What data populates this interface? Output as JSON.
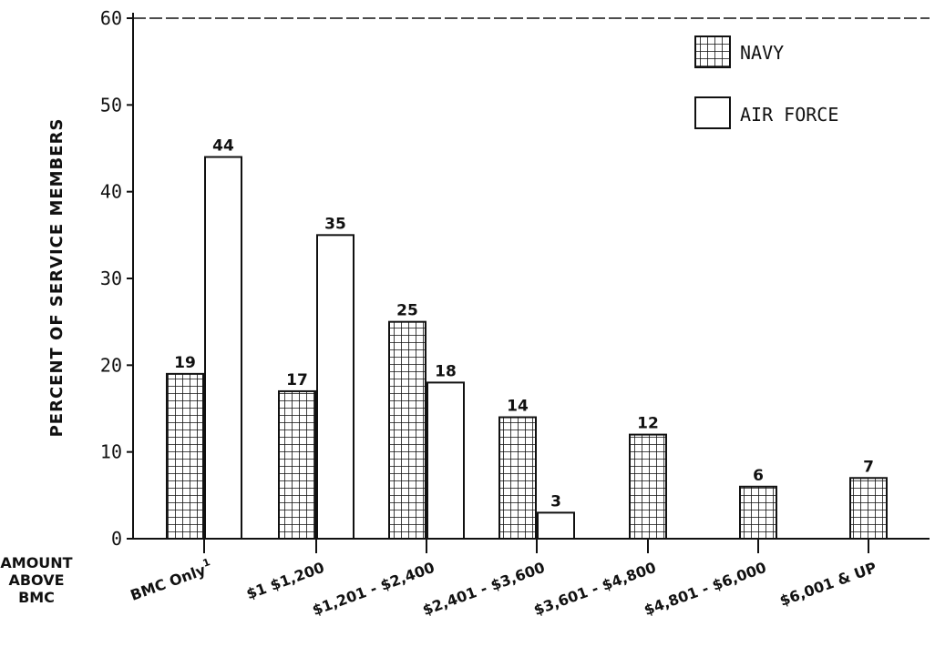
{
  "chart_data": {
    "type": "bar",
    "title": "",
    "ylabel": "PERCENT OF SERVICE MEMBERS",
    "xlabel_lines": [
      "AMOUNT",
      "ABOVE",
      "BMC"
    ],
    "ylim": [
      0,
      60
    ],
    "yticks": [
      "0",
      "10",
      "20",
      "30",
      "40",
      "50",
      "60"
    ],
    "categories": [
      "BMC Only",
      "$1  $1,200",
      "$1,201 - $2,400",
      "$2,401 - $3,600",
      "$3,601 - $4,800",
      "$4,801 - $6,000",
      "$6,001 & UP"
    ],
    "footnote_mark": "1",
    "series": [
      {
        "name": "NAVY",
        "pattern": "grid",
        "values": [
          19,
          17,
          25,
          14,
          12,
          6,
          7
        ]
      },
      {
        "name": "AIR FORCE",
        "pattern": "none",
        "values": [
          44,
          35,
          18,
          3,
          null,
          null,
          null
        ]
      }
    ],
    "legend_position": "top-right",
    "grid": false,
    "colors": {
      "ink": "#111111",
      "background": "#ffffff"
    }
  }
}
